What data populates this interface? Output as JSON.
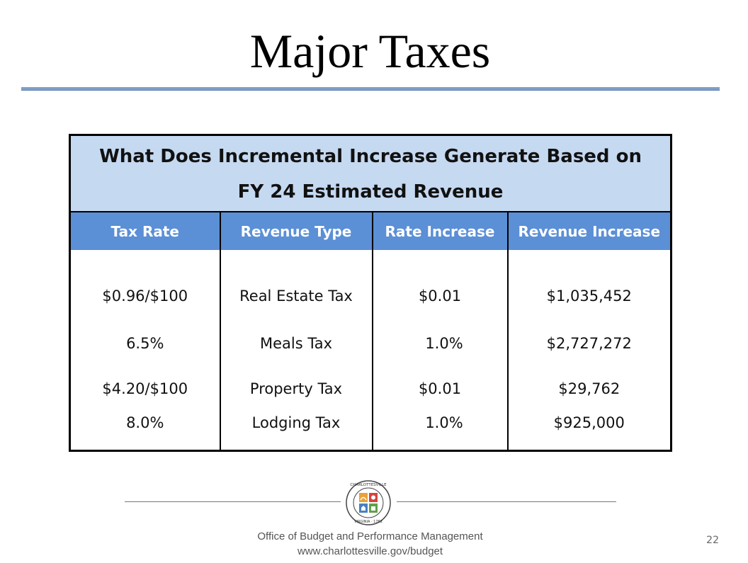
{
  "slide": {
    "title": "Major Taxes",
    "page_number": "22"
  },
  "table": {
    "caption_line1": "What Does Incremental Increase Generate Based on",
    "caption_line2": "FY 24 Estimated Revenue",
    "headers": [
      "Tax Rate",
      "Revenue Type",
      "Rate Increase",
      "Revenue Increase"
    ],
    "rows": [
      [
        "$0.96/$100",
        "Real Estate Tax",
        "$0.01",
        "$1,035,452"
      ],
      [
        "6.5%",
        "Meals Tax",
        "1.0%",
        "$2,727,272"
      ],
      [
        "$4.20/$100",
        "Property Tax",
        "$0.01",
        "$29,762"
      ],
      [
        "8.0%",
        "Lodging Tax",
        "1.0%",
        "$925,000"
      ]
    ]
  },
  "footer": {
    "office": "Office of Budget and Performance Management",
    "url": "www.charlottesville.gov/budget",
    "seal_text_top": "CHARLOTTESVILLE",
    "seal_text_bottom": "VIRGINIA · 1762"
  },
  "colors": {
    "caption_bg": "#c5d9f1",
    "header_bg": "#5b8fd6",
    "title_rule": "#7fa0c8"
  }
}
